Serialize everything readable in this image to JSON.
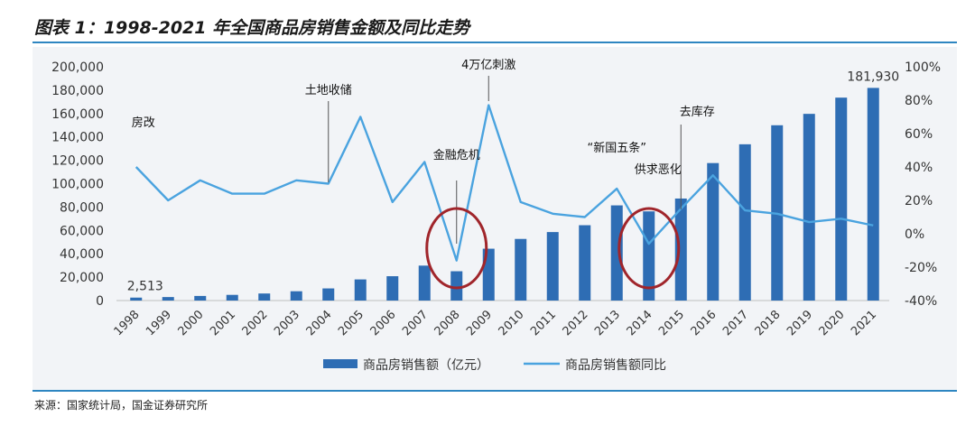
{
  "title": "图表 1：1998-2021 年全国商品房销售金额及同比走势",
  "source": "来源：国家统计局，国金证券研究所",
  "colors": {
    "bar": "#2e6db4",
    "line": "#4aa3df",
    "circle": "#a0252b",
    "axis": "#333333",
    "leader": "#555555"
  },
  "chart_data": {
    "type": "bar+line",
    "categories": [
      "1998",
      "1999",
      "2000",
      "2001",
      "2002",
      "2003",
      "2004",
      "2005",
      "2006",
      "2007",
      "2008",
      "2009",
      "2010",
      "2011",
      "2012",
      "2013",
      "2014",
      "2015",
      "2016",
      "2017",
      "2018",
      "2019",
      "2020",
      "2021"
    ],
    "series": [
      {
        "name": "商品房销售额（亿元）",
        "type": "bar",
        "axis": "left",
        "values": [
          2513,
          2988,
          3935,
          4863,
          6032,
          7956,
          10376,
          18080,
          20826,
          29889,
          25068,
          44355,
          52721,
          58589,
          64456,
          81428,
          76292,
          87281,
          117627,
          133701,
          149973,
          159725,
          173613,
          181930
        ]
      },
      {
        "name": "商品房销售额同比",
        "type": "line",
        "axis": "right",
        "values": [
          40,
          20,
          32,
          24,
          24,
          32,
          30,
          70,
          19,
          43,
          -16,
          77,
          19,
          12,
          10,
          27,
          -6,
          15,
          35,
          14,
          12,
          7,
          9,
          5
        ]
      }
    ],
    "left_axis": {
      "min": 0,
      "max": 200000,
      "step": 20000,
      "ticks": [
        "0",
        "20,000",
        "40,000",
        "60,000",
        "80,000",
        "100,000",
        "120,000",
        "140,000",
        "160,000",
        "180,000",
        "200,000"
      ]
    },
    "right_axis": {
      "min": -40,
      "max": 100,
      "step": 20,
      "ticks": [
        "-40%",
        "-20%",
        "0%",
        "20%",
        "40%",
        "60%",
        "80%",
        "100%"
      ]
    },
    "data_labels": [
      {
        "category": "1998",
        "text": "2,513"
      },
      {
        "category": "2021",
        "text": "181,930"
      }
    ],
    "annotations": [
      {
        "category": "1998",
        "text": "房改"
      },
      {
        "category": "2004",
        "text": "土地收储"
      },
      {
        "category": "2008",
        "text": "金融危机"
      },
      {
        "category": "2009",
        "text": "4万亿刺激"
      },
      {
        "category": "2013",
        "text": "“新国五条”"
      },
      {
        "category": "2014",
        "text": "供求恶化"
      },
      {
        "category": "2015",
        "text": "去库存"
      }
    ],
    "highlighted_categories": [
      "2008",
      "2014"
    ],
    "legend_position": "bottom-center"
  }
}
